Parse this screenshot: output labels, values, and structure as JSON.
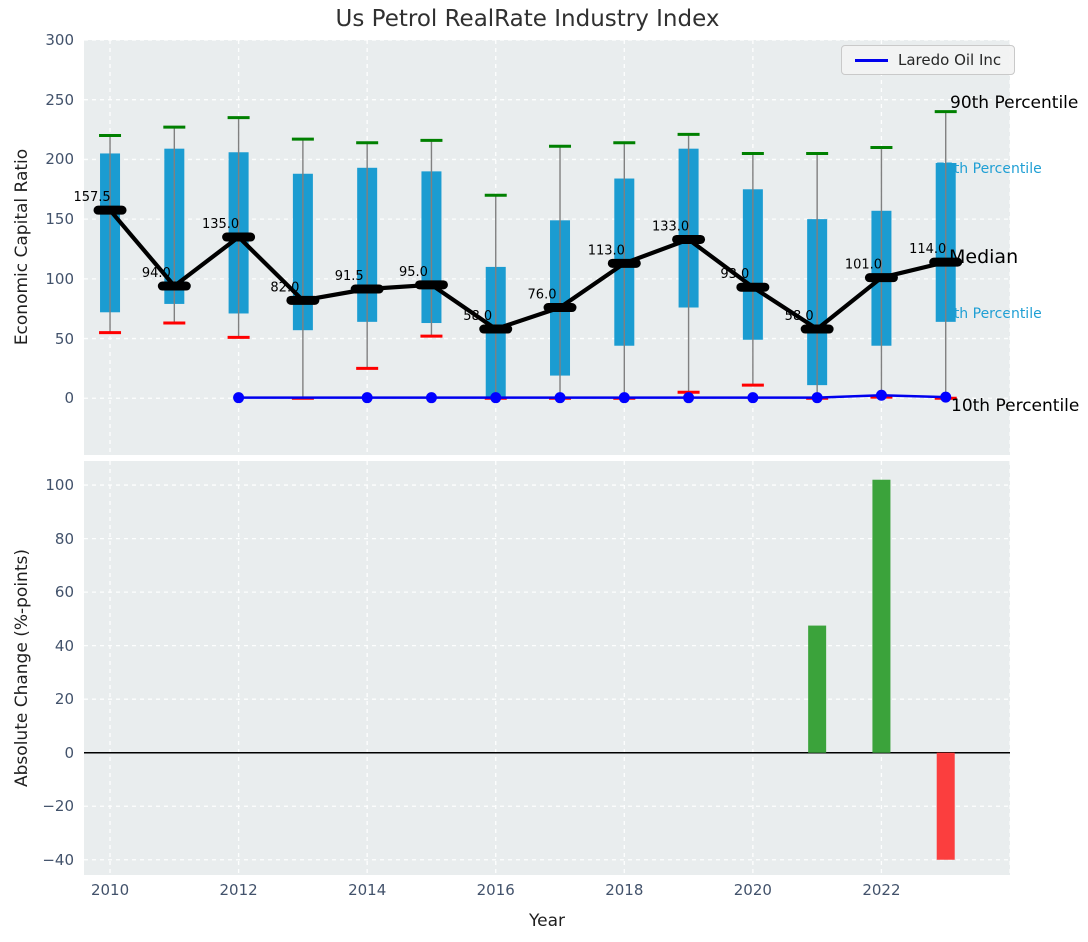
{
  "figure": {
    "title": "Us Petrol RealRate Industry Index"
  },
  "colors": {
    "panel_bg": "#E9EDEE",
    "grid": "#FFFFFF",
    "tick_label": "#42526B",
    "title": "#303030",
    "box": "#1B9CD1",
    "whisker": "#808080",
    "cap_high": "#008000",
    "cap_low": "#FF0000",
    "median": "#000000",
    "company_line": "#0000EE",
    "company_marker": "#0000FF",
    "bar_positive": "#3BA33B",
    "bar_negative": "#FB3E3E",
    "annotation_cyan": "#1F9FD4",
    "zero_line": "#000000",
    "legend_bg": "#F3F3F3",
    "legend_border": "#C9C9C9"
  },
  "chart_data": [
    {
      "type": "boxplot",
      "title": "Us Petrol RealRate Industry Index",
      "ylabel": "Economic Capital Ratio",
      "ylim": [
        -47.5,
        300
      ],
      "yticks": [
        0,
        50,
        100,
        150,
        200,
        250,
        300
      ],
      "xlim": [
        2009.595,
        2024.0
      ],
      "grid": true,
      "legend": {
        "label": "Laredo Oil Inc",
        "position": "upper-right"
      },
      "boxes": [
        {
          "year": 2010,
          "whisker_low": 55,
          "q1": 72,
          "median": 157.5,
          "q3": 205,
          "whisker_high": 220
        },
        {
          "year": 2011,
          "whisker_low": 63,
          "q1": 79,
          "median": 94.0,
          "q3": 209,
          "whisker_high": 227
        },
        {
          "year": 2012,
          "whisker_low": 51,
          "q1": 71,
          "median": 135.0,
          "q3": 206,
          "whisker_high": 235
        },
        {
          "year": 2013,
          "whisker_low": 0,
          "q1": 57,
          "median": 82.0,
          "q3": 188,
          "whisker_high": 217
        },
        {
          "year": 2014,
          "whisker_low": 25,
          "q1": 64,
          "median": 91.5,
          "q3": 193,
          "whisker_high": 214
        },
        {
          "year": 2015,
          "whisker_low": 52,
          "q1": 63,
          "median": 95.0,
          "q3": 190,
          "whisker_high": 216
        },
        {
          "year": 2016,
          "whisker_low": 0,
          "q1": 0,
          "median": 58.0,
          "q3": 110,
          "whisker_high": 170
        },
        {
          "year": 2017,
          "whisker_low": 0,
          "q1": 19,
          "median": 76.0,
          "q3": 149,
          "whisker_high": 211
        },
        {
          "year": 2018,
          "whisker_low": 0,
          "q1": 44,
          "median": 113.0,
          "q3": 184,
          "whisker_high": 214
        },
        {
          "year": 2019,
          "whisker_low": 5,
          "q1": 76,
          "median": 133.0,
          "q3": 209,
          "whisker_high": 221
        },
        {
          "year": 2020,
          "whisker_low": 11,
          "q1": 49,
          "median": 93.0,
          "q3": 175,
          "whisker_high": 205
        },
        {
          "year": 2021,
          "whisker_low": 0,
          "q1": 11,
          "median": 58.0,
          "q3": 150,
          "whisker_high": 205
        },
        {
          "year": 2022,
          "whisker_low": 1,
          "q1": 44,
          "median": 101.0,
          "q3": 157,
          "whisker_high": 210
        },
        {
          "year": 2023,
          "whisker_low": 0,
          "q1": 64,
          "median": 114.0,
          "q3": 197,
          "whisker_high": 240
        }
      ],
      "median_labels": [
        "157.5",
        "94.0",
        "135.0",
        "82.0",
        "91.5",
        "95.0",
        "58.0",
        "76.0",
        "113.0",
        "133.0",
        "93.0",
        "58.0",
        "101.0",
        "114.0"
      ],
      "company_line": {
        "name": "Laredo Oil Inc",
        "points": [
          {
            "year": 2012,
            "value": 0.5
          },
          {
            "year": 2014,
            "value": 0.5
          },
          {
            "year": 2015,
            "value": 0.5
          },
          {
            "year": 2016,
            "value": 0.5
          },
          {
            "year": 2017,
            "value": 0.5
          },
          {
            "year": 2018,
            "value": 0.5
          },
          {
            "year": 2019,
            "value": 0.5
          },
          {
            "year": 2020,
            "value": 0.5
          },
          {
            "year": 2021,
            "value": 0.5
          },
          {
            "year": 2022,
            "value": 2.5
          },
          {
            "year": 2023,
            "value": 1.0
          }
        ]
      },
      "annotations": [
        {
          "text": "90th Percentile",
          "color": "#000000"
        },
        {
          "text": "75th Percentile",
          "color": "#1F9FD4"
        },
        {
          "text": "Median",
          "color": "#000000"
        },
        {
          "text": "25th Percentile",
          "color": "#1F9FD4"
        },
        {
          "text": "10th Percentile",
          "color": "#000000"
        }
      ]
    },
    {
      "type": "bar",
      "ylabel": "Absolute Change (%-points)",
      "xlabel": "Year",
      "ylim": [
        -45.7,
        109
      ],
      "yticks": [
        -40,
        -20,
        0,
        20,
        40,
        60,
        80,
        100
      ],
      "xticks": [
        2010,
        2012,
        2014,
        2016,
        2018,
        2020,
        2022
      ],
      "xlim": [
        2009.595,
        2024.0
      ],
      "grid": true,
      "zero_line": true,
      "bars": [
        {
          "year": 2021,
          "value": 47.5,
          "color": "#3BA33B"
        },
        {
          "year": 2022,
          "value": 102.0,
          "color": "#3BA33B"
        },
        {
          "year": 2023,
          "value": -40.0,
          "color": "#FB3E3E"
        }
      ]
    }
  ]
}
